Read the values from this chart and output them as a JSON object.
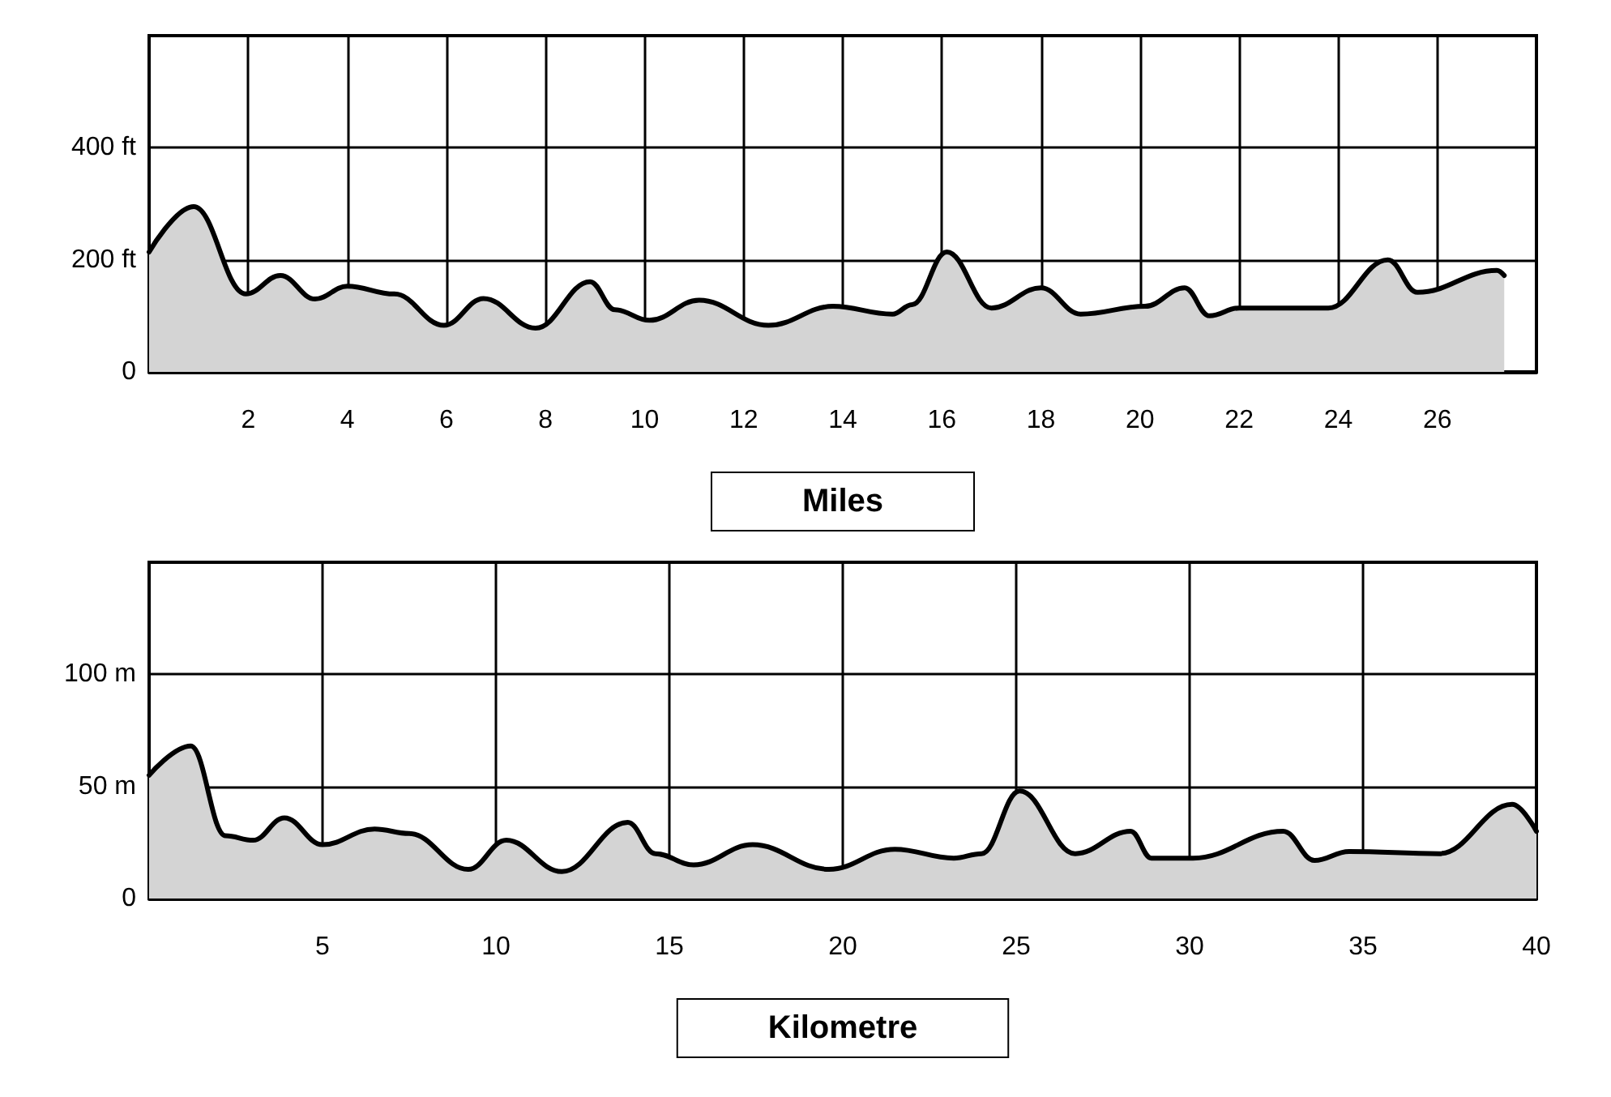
{
  "chart_data": [
    {
      "type": "area",
      "xlabel": "Miles",
      "xlim": [
        0,
        28
      ],
      "ylim": [
        0,
        600
      ],
      "xticks": [
        2,
        4,
        6,
        8,
        10,
        12,
        14,
        16,
        18,
        20,
        22,
        24,
        26
      ],
      "yticks": [
        0,
        {
          "value": 200,
          "label": "200 ft"
        },
        {
          "value": 400,
          "label": "400 ft"
        }
      ],
      "grid": true,
      "marker": "none",
      "line_style": "solid",
      "series": [
        {
          "color": "#000000",
          "x": [
            0,
            0.9,
            1.95,
            2.65,
            3.35,
            4.0,
            4.95,
            5.95,
            6.75,
            7.8,
            8.9,
            9.4,
            10.1,
            11.1,
            12.5,
            13.8,
            15.0,
            15.4,
            16.1,
            17.0,
            18.0,
            18.8,
            20.1,
            20.9,
            21.4,
            22.0,
            23.8,
            25.0,
            25.6,
            27.2,
            27.35
          ],
          "values": [
            214,
            295,
            139,
            172,
            130,
            153,
            139,
            83,
            131,
            78,
            161,
            111,
            92,
            128,
            83,
            117,
            103,
            120,
            214,
            114,
            150,
            103,
            117,
            150,
            100,
            114,
            114,
            200,
            142,
            181,
            172
          ]
        }
      ]
    },
    {
      "type": "area",
      "xlabel": "Kilometre",
      "xlim": [
        0,
        40
      ],
      "ylim": [
        0,
        150
      ],
      "xticks": [
        5,
        10,
        15,
        20,
        25,
        30,
        35,
        40
      ],
      "yticks": [
        0,
        {
          "value": 50,
          "label": "50 m"
        },
        {
          "value": 100,
          "label": "100 m"
        }
      ],
      "grid": true,
      "marker": "none",
      "line_style": "solid",
      "series": [
        {
          "color": "#000000",
          "x": [
            0,
            1.2,
            2.2,
            3.0,
            3.9,
            5.0,
            6.5,
            7.5,
            9.2,
            10.3,
            11.9,
            13.8,
            14.6,
            15.7,
            17.4,
            19.6,
            21.5,
            23.2,
            24.0,
            25.1,
            26.7,
            28.3,
            28.9,
            30.1,
            32.7,
            33.6,
            34.6,
            37.2,
            39.3,
            40.0
          ],
          "values": [
            55,
            68,
            28,
            26,
            36,
            24,
            31,
            29,
            13,
            26,
            12,
            34,
            20,
            15,
            24,
            13,
            22,
            18,
            20,
            48,
            20,
            30,
            18,
            18,
            30,
            17,
            21,
            20,
            42,
            30
          ]
        }
      ]
    }
  ]
}
